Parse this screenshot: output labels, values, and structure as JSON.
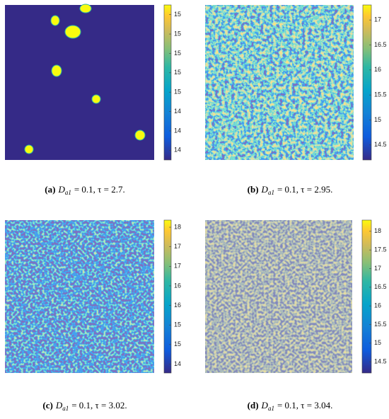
{
  "figure": {
    "panels": [
      {
        "label": "(a)",
        "caption": {
          "var": "D",
          "sub": "a1",
          "rest": "= 0.1, τ = 2.7."
        },
        "colorbar": {
          "lim": [
            13.9,
            15.5
          ],
          "ticks": [
            {
              "value": 15.4,
              "label": "15"
            },
            {
              "value": 15.2,
              "label": "15"
            },
            {
              "value": 15.0,
              "label": "15"
            },
            {
              "value": 14.8,
              "label": "15"
            },
            {
              "value": 14.6,
              "label": "15"
            },
            {
              "value": 14.4,
              "label": "14"
            },
            {
              "value": 14.2,
              "label": "14"
            },
            {
              "value": 14.0,
              "label": "14"
            }
          ]
        }
      },
      {
        "label": "(b)",
        "caption": {
          "var": "D",
          "sub": "a1",
          "rest": "= 0.1, τ = 2.95."
        },
        "colorbar": {
          "lim": [
            14.2,
            17.3
          ],
          "ticks": [
            17,
            16.5,
            16,
            15.5,
            15,
            14.5
          ]
        }
      },
      {
        "label": "(c)",
        "caption": {
          "var": "D",
          "sub": "a1",
          "rest": "= 0.1, τ = 3.02."
        },
        "colorbar": {
          "lim": [
            13.9,
            18.2
          ],
          "ticks": [
            {
              "value": 18.0,
              "label": "18"
            },
            {
              "value": 17.45,
              "label": "17"
            },
            {
              "value": 16.9,
              "label": "17"
            },
            {
              "value": 16.35,
              "label": "16"
            },
            {
              "value": 15.8,
              "label": "16"
            },
            {
              "value": 15.25,
              "label": "15"
            },
            {
              "value": 14.7,
              "label": "15"
            },
            {
              "value": 14.15,
              "label": "14"
            }
          ]
        }
      },
      {
        "label": "(d)",
        "caption": {
          "var": "D",
          "sub": "a1",
          "rest": "= 0.1, τ = 3.04."
        },
        "colorbar": {
          "lim": [
            14.2,
            18.3
          ],
          "ticks": [
            18,
            17.5,
            17,
            16.5,
            16,
            15.5,
            15,
            14.5
          ]
        }
      }
    ]
  }
}
